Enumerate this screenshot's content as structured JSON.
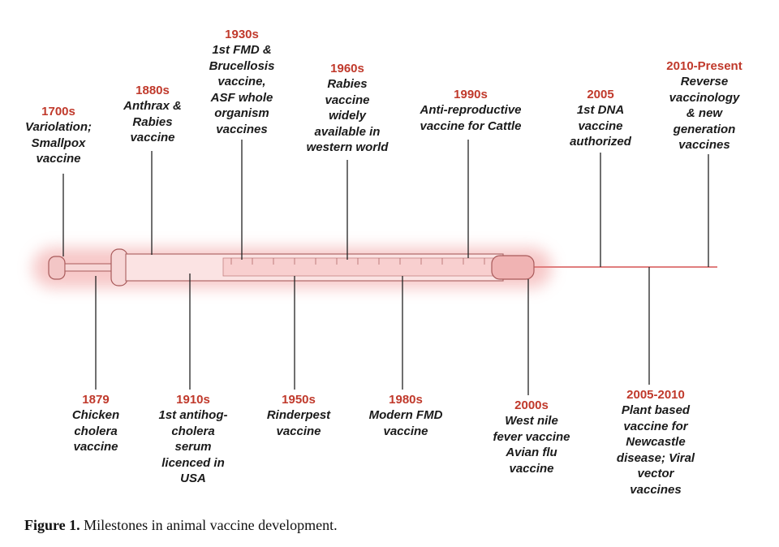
{
  "figure": {
    "caption_label": "Figure 1.",
    "caption_text": "Milestones in animal vaccine development."
  },
  "colors": {
    "year": "#c0392b",
    "text": "#1a1a1a",
    "syringe": "#e8a0a0",
    "glow": "#f2b8b8"
  },
  "milestones_top": [
    {
      "year": "1700s",
      "lines": [
        "Variolation;",
        "Smallpox",
        "vaccine"
      ]
    },
    {
      "year": "1880s",
      "lines": [
        "Anthrax &",
        "Rabies",
        "vaccine"
      ]
    },
    {
      "year": "1930s",
      "lines": [
        "1st FMD &",
        "Brucellosis",
        "vaccine,",
        "ASF whole",
        "organism",
        "vaccines"
      ]
    },
    {
      "year": "1960s",
      "lines": [
        "Rabies",
        "vaccine",
        "widely",
        "available in",
        "western world"
      ]
    },
    {
      "year": "1990s",
      "lines": [
        "Anti-reproductive",
        "vaccine for Cattle"
      ]
    },
    {
      "year": "2005",
      "lines": [
        "1st DNA",
        "vaccine",
        "authorized"
      ]
    },
    {
      "year": "2010-Present",
      "lines": [
        "Reverse",
        "vaccinology",
        "& new",
        "generation",
        "vaccines"
      ]
    }
  ],
  "milestones_bottom": [
    {
      "year": "1879",
      "lines": [
        "Chicken",
        "cholera",
        "vaccine"
      ]
    },
    {
      "year": "1910s",
      "lines": [
        "1st antihog-",
        "cholera",
        "serum",
        "licenced in",
        "USA"
      ]
    },
    {
      "year": "1950s",
      "lines": [
        "Rinderpest",
        "vaccine"
      ]
    },
    {
      "year": "1980s",
      "lines": [
        "Modern FMD",
        "vaccine"
      ]
    },
    {
      "year": "2000s",
      "lines": [
        "West nile",
        "fever vaccine",
        "Avian flu",
        "vaccine"
      ]
    },
    {
      "year": "2005-2010",
      "lines": [
        "Plant based",
        "vaccine for",
        "Newcastle",
        "disease; Viral",
        "vector",
        "vaccines"
      ]
    }
  ]
}
